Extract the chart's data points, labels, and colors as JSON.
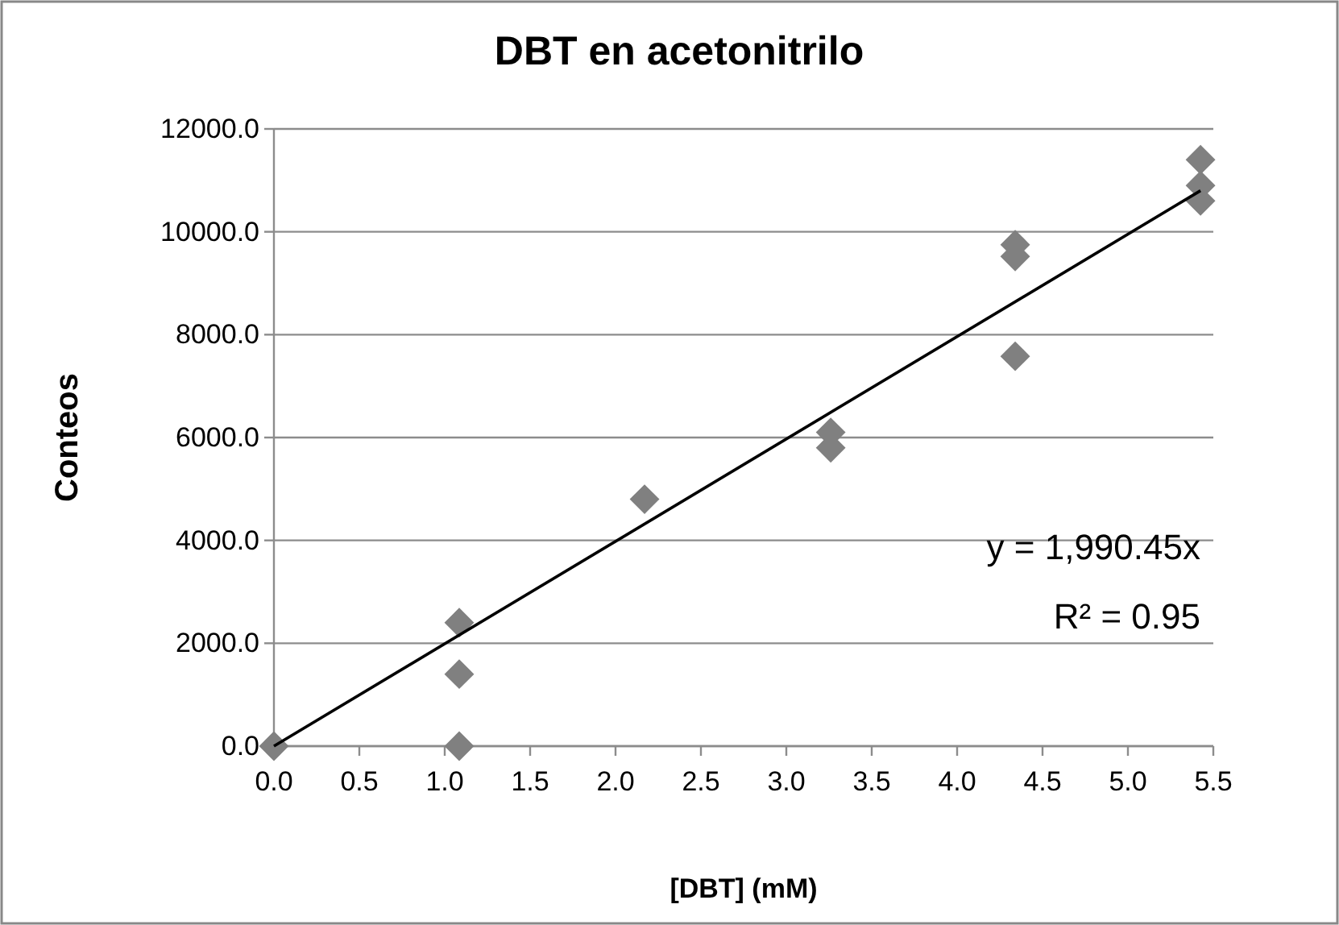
{
  "chart_data": {
    "type": "scatter",
    "title": "DBT en acetonitrilo",
    "xlabel": "[DBT] (mM)",
    "ylabel": "Conteos",
    "xlim": [
      0,
      5.5
    ],
    "xticks": [
      {
        "value": 0,
        "label": "0.0"
      },
      {
        "value": 0.5,
        "label": "0.5"
      },
      {
        "value": 1,
        "label": "1.0"
      },
      {
        "value": 1.5,
        "label": "1.5"
      },
      {
        "value": 2,
        "label": "2.0"
      },
      {
        "value": 2.5,
        "label": "2.5"
      },
      {
        "value": 3,
        "label": "3.0"
      },
      {
        "value": 3.5,
        "label": "3.5"
      },
      {
        "value": 4,
        "label": "4.0"
      },
      {
        "value": 4.5,
        "label": "4.5"
      },
      {
        "value": 5,
        "label": "5.0"
      },
      {
        "value": 5.5,
        "label": "5.5"
      }
    ],
    "ylim": [
      0,
      12000
    ],
    "yticks": [
      {
        "value": 0,
        "label": "0.0"
      },
      {
        "value": 2000,
        "label": "2000.0"
      },
      {
        "value": 4000,
        "label": "4000.0"
      },
      {
        "value": 6000,
        "label": "6000.0"
      },
      {
        "value": 8000,
        "label": "8000.0"
      },
      {
        "value": 10000,
        "label": "10000.0"
      },
      {
        "value": 12000,
        "label": "12000.0"
      }
    ],
    "grid": "y",
    "marker": "diamond",
    "series": [
      {
        "color": "#808080",
        "x": [
          0,
          1.085,
          1.085,
          1.085,
          2.17,
          3.26,
          3.26,
          4.34,
          4.34,
          4.34,
          5.425,
          5.425,
          5.425
        ],
        "values": [
          0,
          0,
          1400,
          2400,
          4800,
          6100,
          5800,
          9750,
          9520,
          7580,
          11400,
          10900,
          10600
        ]
      },
      {
        "type": "line",
        "color": "#000000",
        "x": [
          0,
          5.425
        ],
        "values": [
          0,
          10800
        ],
        "marker": "none",
        "line_style": "solid"
      }
    ],
    "annotations": [
      "y = 1,990.45x",
      "R² = 0.95"
    ]
  }
}
